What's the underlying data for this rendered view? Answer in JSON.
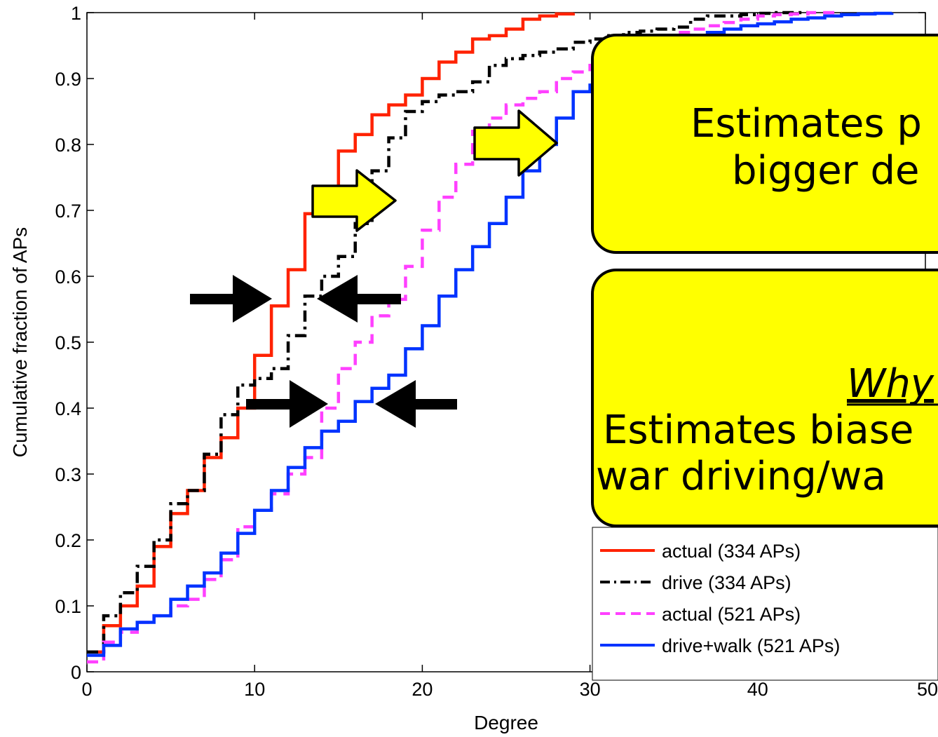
{
  "chart_data": {
    "type": "line",
    "xlabel": "Degree",
    "ylabel": "Cumulative fraction of APs",
    "xlim": [
      0,
      50
    ],
    "ylim": [
      0,
      1
    ],
    "xticks": [
      "0",
      "10",
      "20",
      "30",
      "40",
      "50"
    ],
    "yticks": [
      "0",
      "0.1",
      "0.2",
      "0.3",
      "0.4",
      "0.5",
      "0.6",
      "0.7",
      "0.8",
      "0.9",
      "1"
    ],
    "grid": false,
    "legend_position": "bottom-right",
    "series": [
      {
        "name": "actual (334 APs)",
        "color": "#ff2200",
        "style": "solid",
        "x": [
          0,
          1,
          2,
          3,
          4,
          5,
          6,
          7,
          8,
          9,
          10,
          11,
          12,
          13,
          14,
          15,
          16,
          17,
          18,
          19,
          20,
          21,
          22,
          23,
          24,
          25,
          26,
          27,
          28,
          29
        ],
        "y": [
          0.03,
          0.07,
          0.1,
          0.13,
          0.19,
          0.24,
          0.275,
          0.325,
          0.355,
          0.4,
          0.48,
          0.555,
          0.61,
          0.695,
          0.73,
          0.79,
          0.815,
          0.845,
          0.86,
          0.875,
          0.9,
          0.925,
          0.94,
          0.96,
          0.965,
          0.975,
          0.99,
          0.995,
          0.998,
          1.0
        ]
      },
      {
        "name": "drive (334 APs)",
        "color": "#000000",
        "style": "dashdot",
        "x": [
          0,
          1,
          2,
          3,
          4,
          5,
          6,
          7,
          8,
          9,
          10,
          11,
          12,
          13,
          14,
          15,
          16,
          17,
          18,
          19,
          20,
          21,
          22,
          23,
          24,
          25,
          26,
          27,
          28,
          29,
          30,
          31,
          32,
          33,
          34,
          35,
          36,
          37,
          38,
          39,
          40,
          41,
          42,
          43
        ],
        "y": [
          0.03,
          0.085,
          0.12,
          0.16,
          0.2,
          0.255,
          0.275,
          0.33,
          0.39,
          0.435,
          0.445,
          0.46,
          0.51,
          0.57,
          0.6,
          0.63,
          0.68,
          0.76,
          0.81,
          0.85,
          0.865,
          0.875,
          0.88,
          0.895,
          0.92,
          0.93,
          0.935,
          0.94,
          0.945,
          0.955,
          0.96,
          0.965,
          0.97,
          0.972,
          0.975,
          0.978,
          0.99,
          0.995,
          0.995,
          0.997,
          0.999,
          1.0,
          1.0,
          1.0
        ]
      },
      {
        "name": "actual (521 APs)",
        "color": "#ff40ff",
        "style": "dashed",
        "x": [
          0,
          1,
          2,
          3,
          4,
          5,
          6,
          7,
          8,
          9,
          10,
          11,
          12,
          13,
          14,
          15,
          16,
          17,
          18,
          19,
          20,
          21,
          22,
          23,
          24,
          25,
          26,
          27,
          28,
          29,
          30,
          31,
          32,
          33,
          34,
          35,
          36,
          37,
          38,
          39,
          40,
          41,
          42,
          43,
          44,
          45
        ],
        "y": [
          0.015,
          0.045,
          0.06,
          0.075,
          0.085,
          0.1,
          0.11,
          0.14,
          0.17,
          0.22,
          0.245,
          0.27,
          0.3,
          0.325,
          0.4,
          0.46,
          0.5,
          0.54,
          0.565,
          0.615,
          0.67,
          0.72,
          0.77,
          0.82,
          0.84,
          0.86,
          0.87,
          0.88,
          0.9,
          0.91,
          0.92,
          0.935,
          0.94,
          0.955,
          0.96,
          0.97,
          0.975,
          0.98,
          0.985,
          0.99,
          0.995,
          0.997,
          0.998,
          1.0,
          1.0,
          1.0
        ]
      },
      {
        "name": "drive+walk (521 APs)",
        "color": "#0033ff",
        "style": "solid",
        "x": [
          0,
          1,
          2,
          3,
          4,
          5,
          6,
          7,
          8,
          9,
          10,
          11,
          12,
          13,
          14,
          15,
          16,
          17,
          18,
          19,
          20,
          21,
          22,
          23,
          24,
          25,
          26,
          27,
          28,
          29,
          30,
          31,
          32,
          33,
          34,
          35,
          36,
          37,
          38,
          39,
          40,
          41,
          42,
          43,
          44,
          45,
          46,
          47,
          48
        ],
        "y": [
          0.025,
          0.04,
          0.065,
          0.075,
          0.085,
          0.11,
          0.13,
          0.15,
          0.18,
          0.21,
          0.245,
          0.275,
          0.31,
          0.34,
          0.365,
          0.38,
          0.41,
          0.43,
          0.45,
          0.49,
          0.525,
          0.57,
          0.61,
          0.645,
          0.68,
          0.72,
          0.76,
          0.8,
          0.84,
          0.88,
          0.89,
          0.92,
          0.935,
          0.945,
          0.955,
          0.96,
          0.965,
          0.97,
          0.975,
          0.98,
          0.983,
          0.986,
          0.99,
          0.992,
          0.995,
          0.997,
          0.998,
          0.999,
          1.0
        ]
      }
    ]
  },
  "annotations": {
    "callout_top_line1": "Estimates p",
    "callout_top_line2": "bigger de",
    "callout_bottom_title": "Why",
    "callout_bottom_line1": "Estimates biase",
    "callout_bottom_line2": "war driving/wa",
    "callout_fill": "#ffff00"
  }
}
